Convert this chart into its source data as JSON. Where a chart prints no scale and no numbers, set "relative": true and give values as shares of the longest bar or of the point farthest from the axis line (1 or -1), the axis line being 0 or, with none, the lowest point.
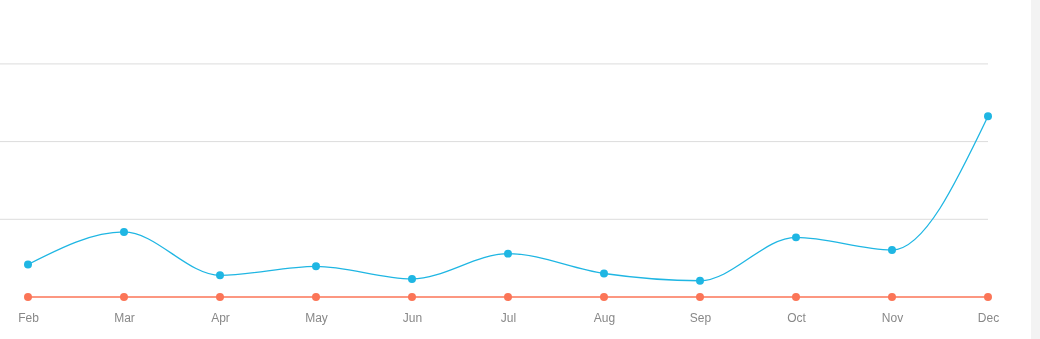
{
  "chart_data": {
    "type": "line",
    "relative": true,
    "ref_lines": [
      {
        "axis": "y",
        "value": 0.43,
        "color": "#dcdcdc"
      },
      {
        "axis": "y",
        "value": 0.86,
        "color": "#dcdcdc"
      },
      {
        "axis": "y",
        "value": 1.29,
        "color": "#dcdcdc"
      }
    ],
    "marker": "circle",
    "line_style": "solid",
    "categories": [
      "Feb",
      "Mar",
      "Apr",
      "May",
      "Jun",
      "Jul",
      "Aug",
      "Sep",
      "Oct",
      "Nov",
      "Dec"
    ],
    "series": [
      {
        "color": "#1fb6e3",
        "values": [
          0.18,
          0.36,
          0.12,
          0.17,
          0.1,
          0.24,
          0.13,
          0.09,
          0.33,
          0.26,
          1
        ]
      },
      {
        "color": "#fb7557",
        "values": [
          0,
          0,
          0,
          0,
          0,
          0,
          0,
          0,
          0,
          0,
          0
        ]
      }
    ]
  }
}
